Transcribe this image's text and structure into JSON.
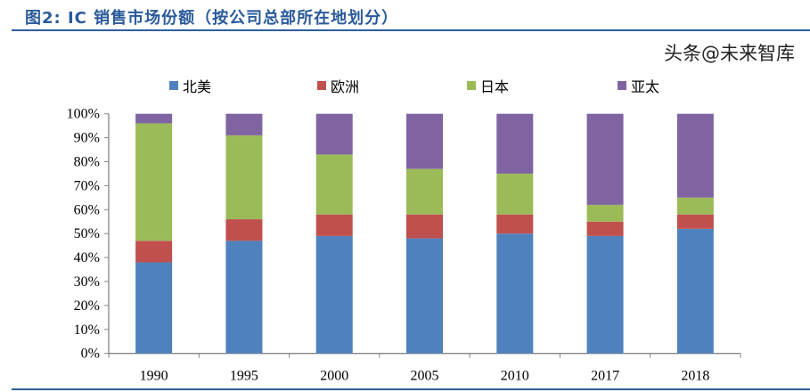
{
  "title": "图2: IC 销售市场份额（按公司总部所在地划分）",
  "watermark": "头条@未来智库",
  "chart_data": {
    "type": "bar",
    "stacked": true,
    "title": "图2: IC 销售市场份额（按公司总部所在地划分）",
    "categories": [
      "1990",
      "1995",
      "2000",
      "2005",
      "2010",
      "2017",
      "2018"
    ],
    "series": [
      {
        "name": "北美",
        "color": "#4f81bd",
        "values": [
          38,
          47,
          49,
          48,
          50,
          49,
          52
        ]
      },
      {
        "name": "欧洲",
        "color": "#c0504d",
        "values": [
          9,
          9,
          9,
          10,
          8,
          6,
          6
        ]
      },
      {
        "name": "日本",
        "color": "#9bbb59",
        "values": [
          49,
          35,
          25,
          19,
          17,
          7,
          7
        ]
      },
      {
        "name": "亚太",
        "color": "#8064a2",
        "values": [
          4,
          9,
          17,
          23,
          25,
          38,
          35
        ]
      }
    ],
    "ylim": [
      0,
      100
    ],
    "yticks": [
      "0%",
      "10%",
      "20%",
      "30%",
      "40%",
      "50%",
      "60%",
      "70%",
      "80%",
      "90%",
      "100%"
    ],
    "legend": "top",
    "grid": false
  }
}
